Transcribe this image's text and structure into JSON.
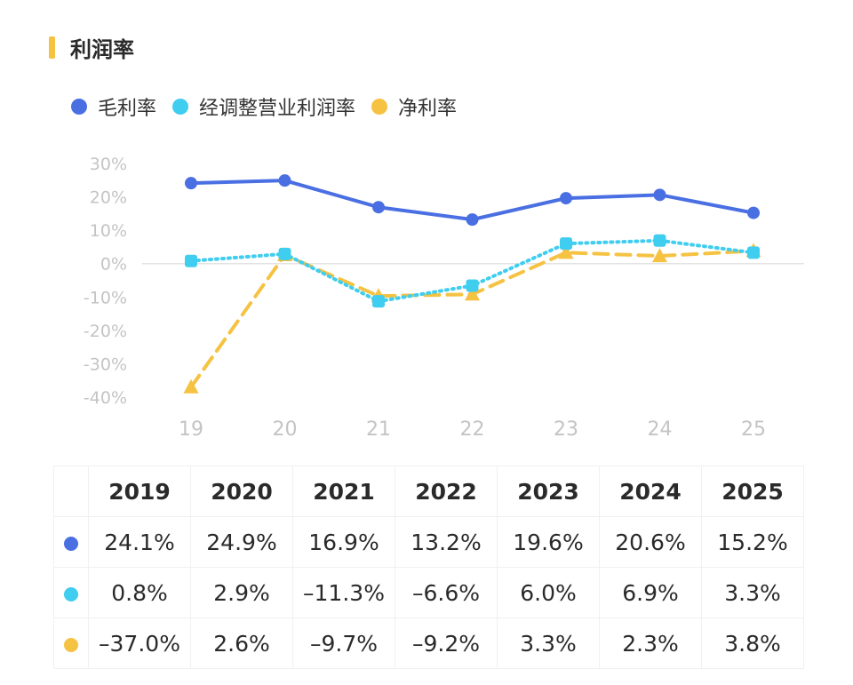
{
  "title": "利润率",
  "colors": {
    "accent": "#f5c242"
  },
  "chart_data": {
    "type": "line",
    "categories": [
      "19",
      "20",
      "21",
      "22",
      "23",
      "24",
      "25"
    ],
    "y_tick_labels": [
      "30%",
      "20%",
      "10%",
      "0%",
      "-10%",
      "-20%",
      "-30%",
      "-40%"
    ],
    "ylim": [
      -40,
      30
    ],
    "legend_position": "top-left",
    "grid": false,
    "series": [
      {
        "name": "毛利率",
        "color": "#4a6fe3",
        "marker": "circle",
        "line_style": "solid",
        "values": [
          24.1,
          24.9,
          16.9,
          13.2,
          19.6,
          20.6,
          15.2
        ]
      },
      {
        "name": "经调整营业利润率",
        "color": "#3fcdf0",
        "marker": "square",
        "line_style": "dotted",
        "values": [
          0.8,
          2.9,
          -11.3,
          -6.6,
          6.0,
          6.9,
          3.3
        ]
      },
      {
        "name": "净利率",
        "color": "#f5c242",
        "marker": "triangle",
        "line_style": "dashed",
        "values": [
          -37.0,
          2.6,
          -9.7,
          -9.2,
          3.3,
          2.3,
          3.8
        ]
      }
    ]
  },
  "table": {
    "years": [
      "2019",
      "2020",
      "2021",
      "2022",
      "2023",
      "2024",
      "2025"
    ],
    "rows": [
      {
        "color": "#4a6fe3",
        "cells": [
          "24.1%",
          "24.9%",
          "16.9%",
          "13.2%",
          "19.6%",
          "20.6%",
          "15.2%"
        ]
      },
      {
        "color": "#3fcdf0",
        "cells": [
          "0.8%",
          "2.9%",
          "–11.3%",
          "–6.6%",
          "6.0%",
          "6.9%",
          "3.3%"
        ]
      },
      {
        "color": "#f5c242",
        "cells": [
          "–37.0%",
          "2.6%",
          "–9.7%",
          "–9.2%",
          "3.3%",
          "2.3%",
          "3.8%"
        ]
      }
    ]
  }
}
